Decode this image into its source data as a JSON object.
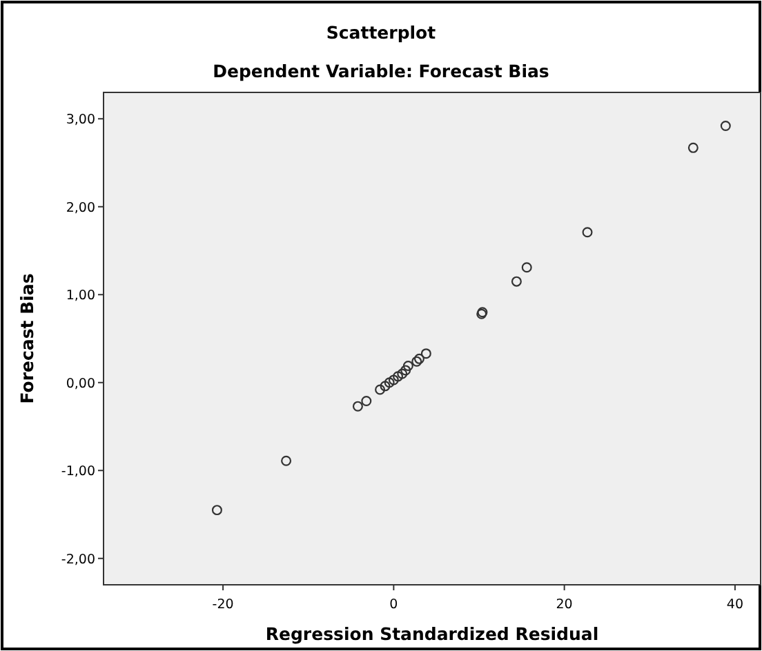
{
  "chart_data": {
    "type": "scatter",
    "title": "Scatterplot",
    "subtitle": "Dependent Variable: Forecast Bias",
    "xlabel": "Regression Standardized Residual",
    "ylabel": "Forecast Bias",
    "xlim": [
      -34,
      43
    ],
    "ylim": [
      -2.3,
      3.3
    ],
    "xticks": [
      -20,
      0,
      20,
      40
    ],
    "yticks": [
      {
        "value": -2,
        "label": "-2,00"
      },
      {
        "value": -1,
        "label": "-1,00"
      },
      {
        "value": 0,
        "label": "0,00"
      },
      {
        "value": 1,
        "label": "1,00"
      },
      {
        "value": 2,
        "label": "2,00"
      },
      {
        "value": 3,
        "label": "3,00"
      }
    ],
    "grid": false,
    "marker": "circle",
    "series": [
      {
        "color": "#333333",
        "x": [
          38.9,
          35.1,
          22.7,
          15.6,
          14.4,
          10.4,
          10.3,
          3.8,
          3.0,
          2.7,
          1.7,
          -3.2,
          -4.2,
          -20.7,
          -12.6,
          -1.6,
          -1.0,
          -0.5,
          0.0,
          0.5,
          1.0,
          1.4
        ],
        "values": [
          2.92,
          2.67,
          1.71,
          1.31,
          1.15,
          0.8,
          0.78,
          0.33,
          0.27,
          0.24,
          0.19,
          -0.21,
          -0.27,
          -1.45,
          -0.89,
          -0.08,
          -0.04,
          0.0,
          0.03,
          0.07,
          0.1,
          0.14
        ]
      }
    ]
  }
}
